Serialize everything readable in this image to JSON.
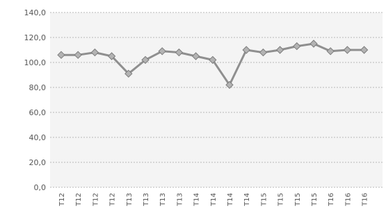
{
  "chart_data": {
    "type": "line",
    "title": "",
    "xlabel": "",
    "ylabel": "",
    "ylim": [
      0,
      140
    ],
    "yticks": [
      "0,0",
      "20,0",
      "40,0",
      "60,0",
      "80,0",
      "100,0",
      "120,0",
      "140,0"
    ],
    "grid": true,
    "categories": [
      "T12",
      "T12",
      "T12",
      "T12",
      "T13",
      "T13",
      "T13",
      "T13",
      "T14",
      "T14",
      "T14",
      "T14",
      "T15",
      "T15",
      "T15",
      "T15",
      "T16",
      "T16",
      "T16"
    ],
    "series": [
      {
        "values": [
          106,
          106,
          108,
          105,
          91,
          102,
          109,
          108,
          105,
          102,
          82,
          110,
          108,
          110,
          113,
          115,
          109,
          110,
          110
        ],
        "color": "#8f8f8f",
        "marker": "diamond"
      }
    ]
  }
}
